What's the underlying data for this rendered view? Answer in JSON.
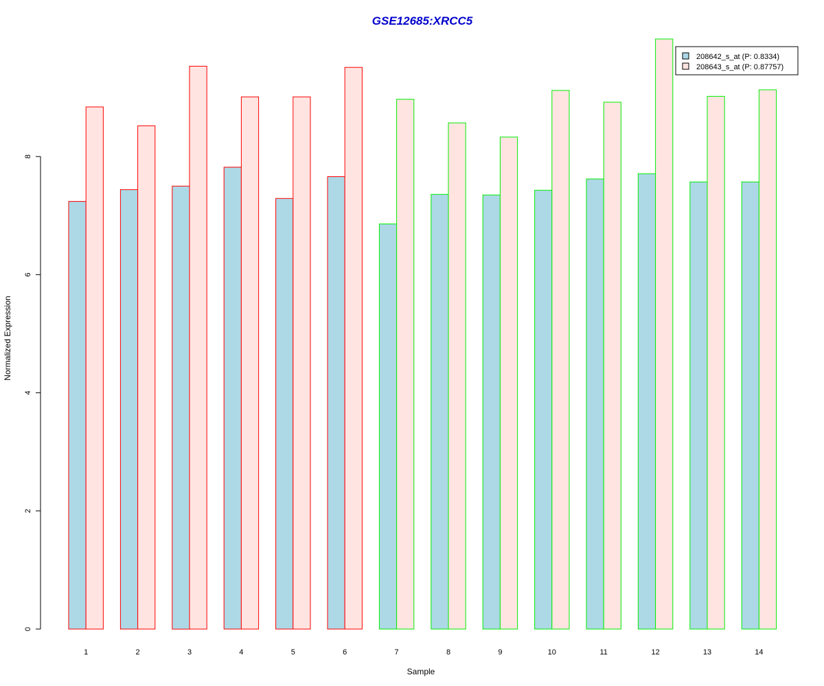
{
  "chart_data": {
    "type": "bar",
    "title": "GSE12685:XRCC5",
    "xlabel": "Sample",
    "ylabel": "Normalized Expression",
    "categories": [
      "1",
      "2",
      "3",
      "4",
      "5",
      "6",
      "7",
      "8",
      "9",
      "10",
      "11",
      "12",
      "13",
      "14"
    ],
    "series": [
      {
        "name": "208642_s_at (P: 0.8334)",
        "fill": "#add8e6",
        "values": [
          7.24,
          7.44,
          7.5,
          7.82,
          7.29,
          7.66,
          6.86,
          7.36,
          7.35,
          7.43,
          7.62,
          7.71,
          7.57,
          7.57
        ]
      },
      {
        "name": "208643_s_at (P: 0.87757)",
        "fill": "#ffe4e1",
        "values": [
          8.84,
          8.52,
          9.53,
          9.01,
          9.01,
          9.51,
          8.97,
          8.57,
          8.33,
          9.12,
          8.92,
          9.99,
          9.02,
          9.13
        ]
      }
    ],
    "group_border_colors": [
      "#ff0000",
      "#ff0000",
      "#ff0000",
      "#ff0000",
      "#ff0000",
      "#ff0000",
      "#00ee00",
      "#00ee00",
      "#00ee00",
      "#00ee00",
      "#00ee00",
      "#00ee00",
      "#00ee00",
      "#00ee00"
    ],
    "yticks": [
      0,
      2,
      4,
      6,
      8
    ],
    "ylim": [
      0,
      10
    ],
    "legend_position": "top-right",
    "grid": false,
    "title_color": "#0000cc"
  }
}
